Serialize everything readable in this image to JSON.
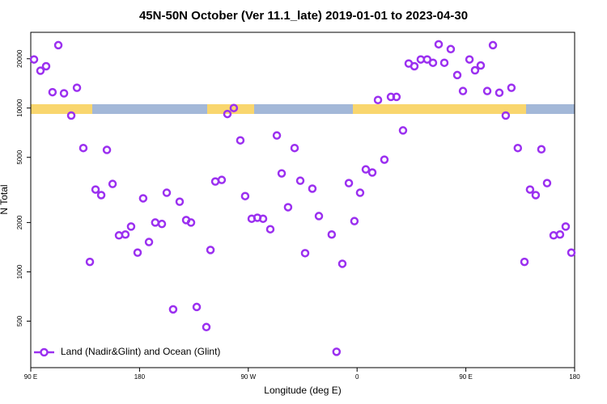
{
  "chart_data": {
    "type": "scatter",
    "title": "45N-50N October (Ver 11.1_late)   2019-01-01 to 2023-04-30",
    "x_label": "Longitude (deg E)",
    "y_label": "N Total",
    "log_y": true,
    "legend": "lower left",
    "xlim": [
      90,
      540
    ],
    "ylim": [
      260,
      29000
    ],
    "xticks": [
      {
        "value": 90,
        "label": "90 E"
      },
      {
        "value": 180,
        "label": "180"
      },
      {
        "value": 270,
        "label": "90 W"
      },
      {
        "value": 360,
        "label": "0"
      },
      {
        "value": 450,
        "label": "90 E"
      },
      {
        "value": 540,
        "label": "180"
      }
    ],
    "yticks": [
      500,
      1000,
      2000,
      5000,
      10000,
      20000
    ],
    "series": [
      {
        "name": "Land (Nadir&Glint) and Ocean (Glint)",
        "color": "#9b30f0",
        "x": [
          92.7,
          98,
          102.7,
          108,
          112.8,
          117.5,
          123.5,
          128.2,
          133.5,
          138.9,
          143.6,
          148.3,
          153,
          157.7,
          163,
          168.3,
          173,
          178.4,
          183,
          187.8,
          193,
          198.5,
          202.5,
          207.8,
          213.2,
          218.6,
          222.6,
          227.3,
          235.3,
          238.7,
          242.7,
          248,
          252.7,
          258,
          263.4,
          267.4,
          272.8,
          277.5,
          282.2,
          288.2,
          293.6,
          297.6,
          302.9,
          308.3,
          313,
          317,
          323,
          328.4,
          339,
          343,
          347.8,
          353.2,
          357.8,
          362.5,
          367.2,
          372.6,
          377.3,
          382.6,
          388,
          392.6,
          398,
          402.7,
          407.4,
          412.7,
          418,
          422.8,
          427.5,
          432.2,
          437.5,
          442.9,
          447.6,
          453,
          457.6,
          462.3,
          467.7,
          472.4,
          477.7,
          483,
          487.7,
          493,
          498.5,
          503.1,
          507.8,
          512.5,
          517.2,
          522.6,
          527.9,
          532.6,
          537.3
        ],
        "values": [
          19800,
          16900,
          18000,
          12500,
          24200,
          12300,
          9000,
          13300,
          5700,
          1150,
          3180,
          2940,
          5550,
          3440,
          1670,
          1690,
          1890,
          1310,
          2810,
          1520,
          2000,
          1960,
          3040,
          590,
          2680,
          2070,
          2000,
          610,
          460,
          1360,
          3560,
          3640,
          9200,
          10000,
          6350,
          2900,
          2110,
          2140,
          2110,
          1820,
          6800,
          3990,
          2480,
          5700,
          3600,
          1300,
          3220,
          2190,
          1690,
          325,
          1120,
          3480,
          2040,
          3040,
          4220,
          4040,
          11200,
          4840,
          11700,
          11700,
          7300,
          18700,
          18000,
          19800,
          19800,
          18900,
          24500,
          18900,
          22900,
          15900,
          12700,
          19800,
          17000,
          18200,
          12700,
          24200,
          12400,
          9000,
          13300,
          5700,
          1150,
          3180,
          2940,
          5600,
          3480,
          1670,
          1690,
          1890,
          1310
        ]
      }
    ]
  }
}
